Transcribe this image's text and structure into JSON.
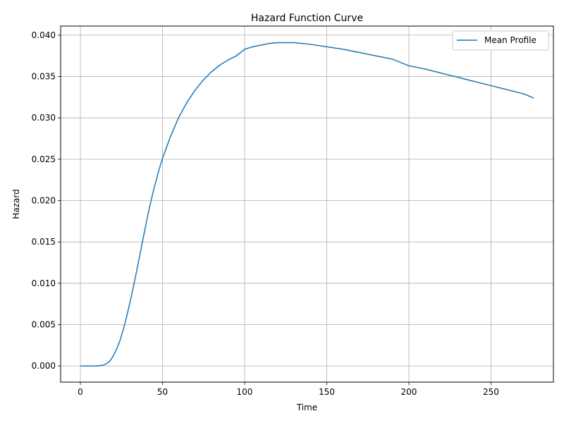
{
  "chart_data": {
    "type": "line",
    "title": "Hazard Function Curve",
    "xlabel": "Time",
    "ylabel": "Hazard",
    "xlim": [
      -12,
      288
    ],
    "ylim": [
      -0.00195,
      0.0411
    ],
    "x_ticks": [
      0,
      50,
      100,
      150,
      200,
      250
    ],
    "x_tick_labels": [
      "0",
      "50",
      "100",
      "150",
      "200",
      "250"
    ],
    "y_ticks": [
      0.0,
      0.005,
      0.01,
      0.015,
      0.02,
      0.025,
      0.03,
      0.035,
      0.04
    ],
    "y_tick_labels": [
      "0.000",
      "0.005",
      "0.010",
      "0.015",
      "0.020",
      "0.025",
      "0.030",
      "0.035",
      "0.040"
    ],
    "grid": true,
    "legend_position": "top-right",
    "series_color": "#1f77b4",
    "series": [
      {
        "name": "Mean Profile",
        "x": [
          0,
          5,
          10,
          12,
          14,
          16,
          18,
          20,
          22,
          24,
          26,
          28,
          30,
          32,
          34,
          36,
          38,
          40,
          42,
          45,
          48,
          50,
          55,
          60,
          65,
          70,
          75,
          80,
          85,
          90,
          95,
          100,
          105,
          110,
          115,
          120,
          125,
          130,
          135,
          140,
          150,
          160,
          170,
          180,
          190,
          200,
          210,
          220,
          230,
          240,
          250,
          260,
          270,
          276
        ],
        "y": [
          0.0,
          0.0,
          0.0,
          5e-05,
          0.0001,
          0.0003,
          0.0006,
          0.0012,
          0.002,
          0.003,
          0.0043,
          0.0058,
          0.0075,
          0.0093,
          0.0112,
          0.0132,
          0.0152,
          0.0172,
          0.0191,
          0.0216,
          0.0238,
          0.0251,
          0.0278,
          0.0301,
          0.0319,
          0.0334,
          0.0346,
          0.0356,
          0.0364,
          0.037,
          0.0375,
          0.0383,
          0.0386,
          0.0388,
          0.039,
          0.0391,
          0.0391,
          0.0391,
          0.039,
          0.0389,
          0.0386,
          0.0383,
          0.0379,
          0.0375,
          0.0371,
          0.0363,
          0.0359,
          0.0354,
          0.0349,
          0.0344,
          0.0339,
          0.0334,
          0.0329,
          0.0324
        ]
      }
    ]
  }
}
